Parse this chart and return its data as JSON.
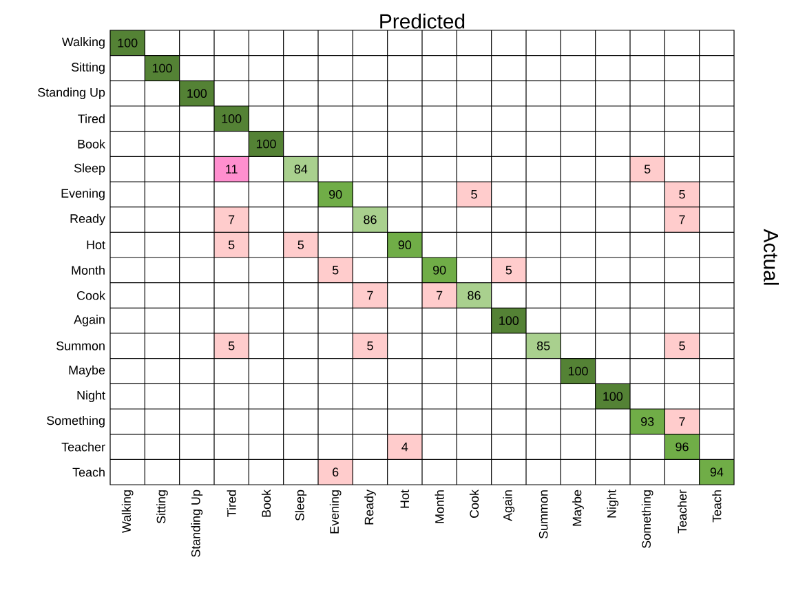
{
  "chart_data": {
    "type": "heatmap",
    "data_labels": true,
    "title": "Predicted",
    "ylabel": "Actual",
    "categories": [
      "Walking",
      "Sitting",
      "Standing Up",
      "Tired",
      "Book",
      "Sleep",
      "Evening",
      "Ready",
      "Hot",
      "Month",
      "Cook",
      "Again",
      "Summon",
      "Maybe",
      "Night",
      "Something",
      "Teacher",
      "Teach"
    ],
    "y_categories": [
      "Walking",
      "Sitting",
      "Standing Up",
      "Tired",
      "Book",
      "Sleep",
      "Evening",
      "Ready",
      "Hot",
      "Month",
      "Cook",
      "Again",
      "Summon",
      "Maybe",
      "Night",
      "Something",
      "Teacher",
      "Teach"
    ],
    "cells": [
      [
        100,
        null,
        null,
        null,
        null,
        null,
        null,
        null,
        null,
        null,
        null,
        null,
        null,
        null,
        null,
        null,
        null,
        null
      ],
      [
        null,
        100,
        null,
        null,
        null,
        null,
        null,
        null,
        null,
        null,
        null,
        null,
        null,
        null,
        null,
        null,
        null,
        null
      ],
      [
        null,
        null,
        100,
        null,
        null,
        null,
        null,
        null,
        null,
        null,
        null,
        null,
        null,
        null,
        null,
        null,
        null,
        null
      ],
      [
        null,
        null,
        null,
        100,
        null,
        null,
        null,
        null,
        null,
        null,
        null,
        null,
        null,
        null,
        null,
        null,
        null,
        null
      ],
      [
        null,
        null,
        null,
        null,
        100,
        null,
        null,
        null,
        null,
        null,
        null,
        null,
        null,
        null,
        null,
        null,
        null,
        null
      ],
      [
        null,
        null,
        null,
        11,
        null,
        84,
        null,
        null,
        null,
        null,
        null,
        null,
        null,
        null,
        null,
        5,
        null,
        null
      ],
      [
        null,
        null,
        null,
        null,
        null,
        null,
        90,
        null,
        null,
        null,
        5,
        null,
        null,
        null,
        null,
        null,
        5,
        null
      ],
      [
        null,
        null,
        null,
        7,
        null,
        null,
        null,
        86,
        null,
        null,
        null,
        null,
        null,
        null,
        null,
        null,
        7,
        null
      ],
      [
        null,
        null,
        null,
        5,
        null,
        5,
        null,
        null,
        90,
        null,
        null,
        null,
        null,
        null,
        null,
        null,
        null,
        null
      ],
      [
        null,
        null,
        null,
        null,
        null,
        null,
        5,
        null,
        null,
        90,
        null,
        5,
        null,
        null,
        null,
        null,
        null,
        null
      ],
      [
        null,
        null,
        null,
        null,
        null,
        null,
        null,
        7,
        null,
        7,
        86,
        null,
        null,
        null,
        null,
        null,
        null,
        null
      ],
      [
        null,
        null,
        null,
        null,
        null,
        null,
        null,
        null,
        null,
        null,
        null,
        100,
        null,
        null,
        null,
        null,
        null,
        null
      ],
      [
        null,
        null,
        null,
        5,
        null,
        null,
        null,
        5,
        null,
        null,
        null,
        null,
        85,
        null,
        null,
        null,
        5,
        null
      ],
      [
        null,
        null,
        null,
        null,
        null,
        null,
        null,
        null,
        null,
        null,
        null,
        null,
        null,
        100,
        null,
        null,
        null,
        null
      ],
      [
        null,
        null,
        null,
        null,
        null,
        null,
        null,
        null,
        null,
        null,
        null,
        null,
        null,
        null,
        100,
        null,
        null,
        null
      ],
      [
        null,
        null,
        null,
        null,
        null,
        null,
        null,
        null,
        null,
        null,
        null,
        null,
        null,
        null,
        null,
        93,
        7,
        null
      ],
      [
        null,
        null,
        null,
        null,
        null,
        null,
        null,
        null,
        4,
        null,
        null,
        null,
        null,
        null,
        null,
        null,
        96,
        null
      ],
      [
        null,
        null,
        null,
        null,
        null,
        null,
        6,
        null,
        null,
        null,
        null,
        null,
        null,
        null,
        null,
        null,
        null,
        94
      ]
    ]
  }
}
